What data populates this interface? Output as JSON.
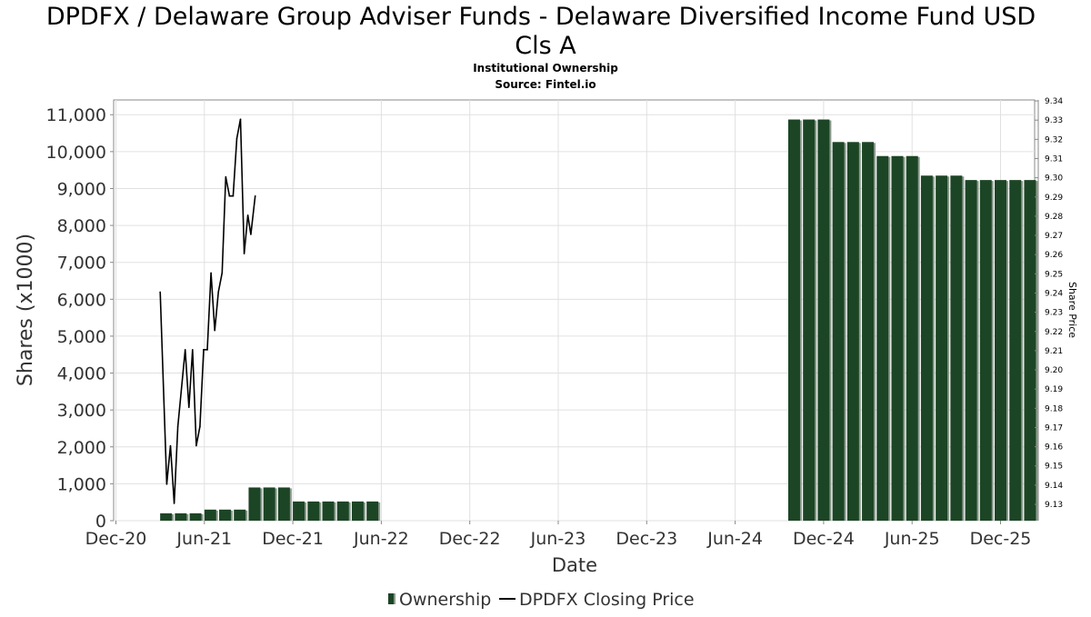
{
  "chart_data": {
    "type": "bar",
    "title_line1": "DPDFX / Delaware Group Adviser Funds - Delaware Diversified Income Fund USD",
    "title_line2": "Cls A",
    "subtitle": "Institutional Ownership",
    "source": "Source: Fintel.io",
    "xlabel": "Date",
    "ylabel": "Shares (x1000)",
    "y2label": "Share Price",
    "x_range": [
      0,
      62
    ],
    "x_unit": "months since Dec-20",
    "x_ticks": [
      {
        "m": 0,
        "label": "Dec-20"
      },
      {
        "m": 6,
        "label": "Jun-21"
      },
      {
        "m": 12,
        "label": "Dec-21"
      },
      {
        "m": 18,
        "label": "Jun-22"
      },
      {
        "m": 24,
        "label": "Dec-22"
      },
      {
        "m": 30,
        "label": "Jun-23"
      },
      {
        "m": 36,
        "label": "Dec-23"
      },
      {
        "m": 42,
        "label": "Jun-24"
      },
      {
        "m": 48,
        "label": "Dec-24"
      },
      {
        "m": 54,
        "label": "Jun-25"
      },
      {
        "m": 60,
        "label": "Dec-25"
      }
    ],
    "ylim": [
      0,
      11400
    ],
    "y_ticks": [
      {
        "v": 0,
        "label": "0"
      },
      {
        "v": 1000,
        "label": "1,000"
      },
      {
        "v": 2000,
        "label": "2,000"
      },
      {
        "v": 3000,
        "label": "3,000"
      },
      {
        "v": 4000,
        "label": "4,000"
      },
      {
        "v": 5000,
        "label": "5,000"
      },
      {
        "v": 6000,
        "label": "6,000"
      },
      {
        "v": 7000,
        "label": "7,000"
      },
      {
        "v": 8000,
        "label": "8,000"
      },
      {
        "v": 9000,
        "label": "9,000"
      },
      {
        "v": 10000,
        "label": "10,000"
      },
      {
        "v": 11000,
        "label": "11,000"
      }
    ],
    "y2lim": [
      9.1215,
      9.3405
    ],
    "y2_ticks": [
      {
        "v": 9.13,
        "label": "9.13"
      },
      {
        "v": 9.14,
        "label": "9.14"
      },
      {
        "v": 9.15,
        "label": "9.15"
      },
      {
        "v": 9.16,
        "label": "9.16"
      },
      {
        "v": 9.17,
        "label": "9.17"
      },
      {
        "v": 9.18,
        "label": "9.18"
      },
      {
        "v": 9.19,
        "label": "9.19"
      },
      {
        "v": 9.2,
        "label": "9.20"
      },
      {
        "v": 9.21,
        "label": "9.21"
      },
      {
        "v": 9.22,
        "label": "9.22"
      },
      {
        "v": 9.23,
        "label": "9.23"
      },
      {
        "v": 9.24,
        "label": "9.24"
      },
      {
        "v": 9.25,
        "label": "9.25"
      },
      {
        "v": 9.26,
        "label": "9.26"
      },
      {
        "v": 9.27,
        "label": "9.27"
      },
      {
        "v": 9.28,
        "label": "9.28"
      },
      {
        "v": 9.29,
        "label": "9.29"
      },
      {
        "v": 9.3,
        "label": "9.30"
      },
      {
        "v": 9.31,
        "label": "9.31"
      },
      {
        "v": 9.32,
        "label": "9.32"
      },
      {
        "v": 9.33,
        "label": "9.33"
      },
      {
        "v": 9.34,
        "label": "9.34"
      }
    ],
    "bar_width_months": 0.8,
    "ownership": {
      "name": "Ownership",
      "points": [
        {
          "m": 3.0,
          "v": 200
        },
        {
          "m": 4.0,
          "v": 200
        },
        {
          "m": 5.0,
          "v": 200
        },
        {
          "m": 6.0,
          "v": 300
        },
        {
          "m": 7.0,
          "v": 300
        },
        {
          "m": 8.0,
          "v": 300
        },
        {
          "m": 9.0,
          "v": 900
        },
        {
          "m": 10.0,
          "v": 900
        },
        {
          "m": 11.0,
          "v": 900
        },
        {
          "m": 12.0,
          "v": 520
        },
        {
          "m": 13.0,
          "v": 520
        },
        {
          "m": 14.0,
          "v": 520
        },
        {
          "m": 15.0,
          "v": 520
        },
        {
          "m": 16.0,
          "v": 520
        },
        {
          "m": 17.0,
          "v": 520
        },
        {
          "m": 45.6,
          "v": 10870
        },
        {
          "m": 46.6,
          "v": 10870
        },
        {
          "m": 47.6,
          "v": 10870
        },
        {
          "m": 48.6,
          "v": 10260
        },
        {
          "m": 49.6,
          "v": 10260
        },
        {
          "m": 50.6,
          "v": 10260
        },
        {
          "m": 51.6,
          "v": 9880
        },
        {
          "m": 52.6,
          "v": 9880
        },
        {
          "m": 53.6,
          "v": 9880
        },
        {
          "m": 54.6,
          "v": 9350
        },
        {
          "m": 55.6,
          "v": 9350
        },
        {
          "m": 56.6,
          "v": 9350
        },
        {
          "m": 57.6,
          "v": 9230
        },
        {
          "m": 58.6,
          "v": 9230
        },
        {
          "m": 59.6,
          "v": 9230
        },
        {
          "m": 60.6,
          "v": 9230
        },
        {
          "m": 61.6,
          "v": 9230
        }
      ]
    },
    "price": {
      "name": "DPDFX Closing Price",
      "points": [
        {
          "m": 3.0,
          "p": 9.2405
        },
        {
          "m": 3.45,
          "p": 9.1405
        },
        {
          "m": 3.7,
          "p": 9.1605
        },
        {
          "m": 3.95,
          "p": 9.1305
        },
        {
          "m": 4.2,
          "p": 9.1705
        },
        {
          "m": 4.7,
          "p": 9.2105
        },
        {
          "m": 4.95,
          "p": 9.1805
        },
        {
          "m": 5.2,
          "p": 9.2105
        },
        {
          "m": 5.45,
          "p": 9.1605
        },
        {
          "m": 5.7,
          "p": 9.1705
        },
        {
          "m": 5.95,
          "p": 9.2105
        },
        {
          "m": 6.2,
          "p": 9.2105
        },
        {
          "m": 6.45,
          "p": 9.2505
        },
        {
          "m": 6.7,
          "p": 9.2205
        },
        {
          "m": 6.95,
          "p": 9.2405
        },
        {
          "m": 7.2,
          "p": 9.2505
        },
        {
          "m": 7.45,
          "p": 9.3005
        },
        {
          "m": 7.7,
          "p": 9.2905
        },
        {
          "m": 7.95,
          "p": 9.2905
        },
        {
          "m": 8.2,
          "p": 9.3205
        },
        {
          "m": 8.45,
          "p": 9.3305
        },
        {
          "m": 8.7,
          "p": 9.2605
        },
        {
          "m": 8.95,
          "p": 9.2805
        },
        {
          "m": 9.15,
          "p": 9.2705
        },
        {
          "m": 9.45,
          "p": 9.2905
        }
      ]
    },
    "legend": {
      "placement": "bottom-center",
      "ownership_label": "Ownership",
      "price_label": "DPDFX Closing Price"
    },
    "colors": {
      "bar": "#1c4525",
      "bar_shadow": "#8a9a8c",
      "line": "#000000",
      "grid": "#e0e0e0",
      "axis": "#888888",
      "text": "#000000",
      "tick_text": "#333333"
    }
  }
}
